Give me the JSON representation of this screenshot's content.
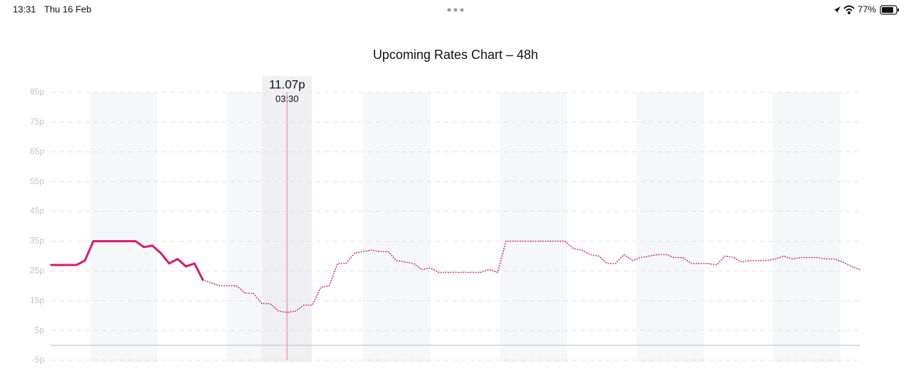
{
  "status_bar": {
    "time": "13:31",
    "date": "Thu 16 Feb",
    "battery": "77%"
  },
  "chart_data": {
    "type": "line",
    "title": "Upcoming Rates Chart – 48h",
    "categories": [
      null,
      null,
      null,
      null,
      null,
      null,
      null,
      null,
      null,
      null,
      null,
      null,
      null,
      null,
      null,
      null,
      null,
      null,
      null,
      null,
      null,
      null,
      null,
      null,
      null,
      null,
      null,
      null,
      "03:30",
      null,
      null,
      null,
      null,
      null,
      null,
      null,
      null,
      null,
      null,
      null,
      null,
      null,
      null,
      null,
      null,
      null,
      null,
      null,
      null,
      null,
      null,
      null,
      null,
      null,
      null,
      null,
      null,
      null,
      null,
      null,
      null,
      null,
      null,
      null,
      null,
      null,
      null,
      null,
      null,
      null,
      null,
      null,
      null,
      null,
      null,
      null,
      null,
      null,
      null,
      null,
      null,
      null,
      null,
      null,
      null,
      null,
      null,
      null,
      null,
      null,
      null,
      null,
      null,
      null,
      null,
      null,
      null
    ],
    "series": [
      {
        "color": "#d81b6f",
        "style": "solid",
        "values": [
          27,
          27,
          27,
          27,
          28.5,
          35,
          35,
          35,
          35,
          35,
          35,
          33,
          33.5,
          31,
          27.5,
          29,
          26.5,
          27.5,
          22,
          null,
          null,
          null,
          null,
          null,
          null,
          null,
          null,
          null,
          null,
          null,
          null,
          null,
          null,
          null,
          null,
          null,
          null,
          null,
          null,
          null,
          null,
          null,
          null,
          null,
          null,
          null,
          null,
          null,
          null,
          null,
          null,
          null,
          null,
          null,
          null,
          null,
          null,
          null,
          null,
          null,
          null,
          null,
          null,
          null,
          null,
          null,
          null,
          null,
          null,
          null,
          null,
          null,
          null,
          null,
          null,
          null,
          null,
          null,
          null,
          null,
          null,
          null,
          null,
          null,
          null,
          null,
          null,
          null,
          null,
          null,
          null,
          null,
          null,
          null,
          null,
          null,
          null
        ]
      },
      {
        "color": "#d81b6f",
        "style": "dotted",
        "values": [
          null,
          null,
          null,
          null,
          null,
          null,
          null,
          null,
          null,
          null,
          null,
          null,
          null,
          null,
          null,
          null,
          null,
          null,
          22,
          21,
          20,
          20,
          20,
          17.5,
          17.5,
          14,
          14,
          11.5,
          11.07,
          11.5,
          13.5,
          13.5,
          19.5,
          20,
          27.5,
          27.5,
          31,
          31.5,
          32,
          31.5,
          31.5,
          28.5,
          28,
          27.5,
          25.5,
          26,
          24.5,
          24.5,
          24.5,
          24.5,
          24.5,
          24.5,
          25.5,
          24.5,
          35,
          35,
          35,
          35,
          35,
          35,
          35,
          35,
          32.5,
          32,
          30.5,
          30,
          27.5,
          27.5,
          30.5,
          28.5,
          29.5,
          30,
          30.5,
          30.5,
          29.5,
          29.5,
          27.5,
          27.5,
          27.5,
          27,
          30,
          29.5,
          28,
          28.5,
          28.5,
          28.5,
          29,
          30,
          29,
          29.5,
          29.5,
          29.5,
          29,
          29,
          28,
          26.5,
          25.5
        ],
        "value_labels": [
          null,
          null,
          null,
          null,
          null,
          null,
          null,
          null,
          null,
          null,
          null,
          null,
          null,
          null,
          null,
          null,
          null,
          null,
          null,
          null,
          null,
          null,
          null,
          null,
          null,
          null,
          null,
          null,
          "11.07p",
          null,
          null,
          null,
          null,
          null,
          null,
          null,
          null,
          null,
          null,
          null,
          null,
          null,
          null,
          null,
          null,
          null,
          null,
          null,
          null,
          null,
          null,
          null,
          null,
          null,
          null,
          null,
          null,
          null,
          null,
          null,
          null,
          null,
          null,
          null,
          null,
          null,
          null,
          null,
          null,
          null,
          null,
          null,
          null,
          null,
          null,
          null,
          null,
          null,
          null,
          null,
          null,
          null,
          null,
          null,
          null,
          null,
          null,
          null,
          null,
          null,
          null,
          null,
          null,
          null,
          null,
          null,
          null
        ]
      }
    ],
    "ylim": [
      -5,
      85
    ],
    "yticks": [
      {
        "value": -5,
        "label": "-5p"
      },
      {
        "value": 5,
        "label": "5p"
      },
      {
        "value": 15,
        "label": "15p"
      },
      {
        "value": 25,
        "label": "25p"
      },
      {
        "value": 35,
        "label": "35p"
      },
      {
        "value": 45,
        "label": "45p"
      },
      {
        "value": 55,
        "label": "55p"
      },
      {
        "value": 65,
        "label": "65p"
      },
      {
        "value": 75,
        "label": "75p"
      },
      {
        "value": 85,
        "label": "85p"
      }
    ],
    "grid": true
  }
}
